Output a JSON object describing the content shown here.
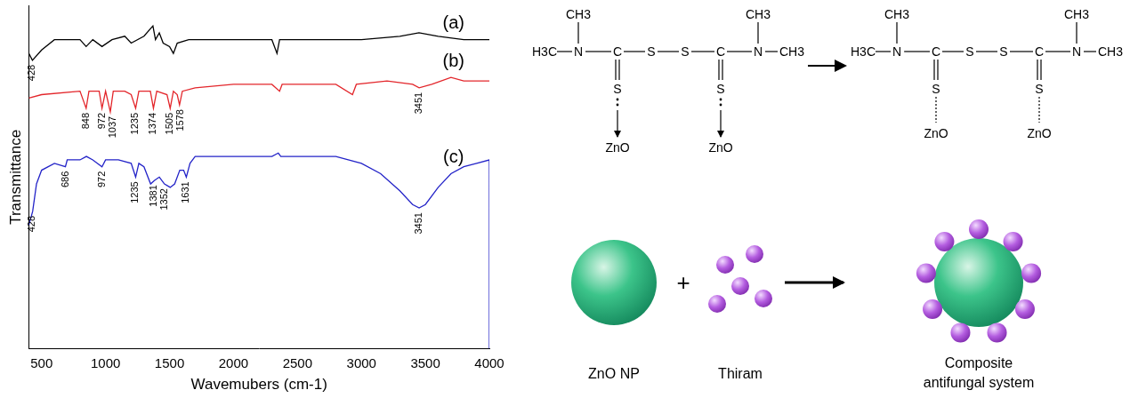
{
  "chart_data": {
    "type": "line",
    "xlabel": "Wavemubers (cm-1)",
    "ylabel": "Transmittance",
    "xlim": [
      400,
      4000
    ],
    "xticks": [
      500,
      1000,
      1500,
      2000,
      2500,
      3000,
      3500,
      4000
    ],
    "ylim": [
      0,
      100
    ],
    "tick_labels": "x",
    "grid": false,
    "series": [
      {
        "name": "(a)",
        "color": "#000000",
        "x": [
          400,
          428,
          500,
          600,
          800,
          848,
          900,
          972,
          1050,
          1150,
          1200,
          1300,
          1370,
          1390,
          1420,
          1450,
          1500,
          1530,
          1560,
          1650,
          2000,
          2300,
          2340,
          2360,
          2500,
          3000,
          3300,
          3450,
          3600,
          3800,
          4000
        ],
        "values": [
          86,
          84,
          87,
          90,
          90,
          88,
          90,
          88,
          90,
          91,
          89,
          91,
          94,
          90,
          92,
          89,
          88,
          86,
          89,
          90,
          90,
          90,
          86,
          90,
          90,
          90,
          91,
          92,
          91,
          90,
          90
        ],
        "peaks": [
          428
        ]
      },
      {
        "name": "(b)",
        "color": "#e3262b",
        "x": [
          400,
          500,
          800,
          848,
          870,
          950,
          972,
          1000,
          1037,
          1060,
          1150,
          1200,
          1235,
          1260,
          1350,
          1374,
          1400,
          1480,
          1505,
          1530,
          1560,
          1578,
          1600,
          1700,
          2000,
          2300,
          2360,
          2380,
          2800,
          2930,
          2960,
          3200,
          3400,
          3451,
          3550,
          3700,
          3800,
          4000
        ],
        "values": [
          73,
          74,
          75,
          70,
          75,
          75,
          70,
          75,
          69,
          75,
          75,
          74,
          70,
          75,
          75,
          70,
          75,
          74,
          70,
          75,
          74,
          71,
          75,
          76,
          77,
          77,
          75,
          77,
          77,
          74,
          77,
          78,
          77,
          76,
          77,
          79,
          78,
          78
        ],
        "peaks": [
          848,
          972,
          1037,
          1235,
          1374,
          1505,
          1578,
          3451
        ]
      },
      {
        "name": "(c)",
        "color": "#2323c8",
        "x": [
          400,
          430,
          460,
          500,
          600,
          686,
          700,
          800,
          850,
          900,
          972,
          1000,
          1100,
          1200,
          1235,
          1260,
          1300,
          1352,
          1381,
          1420,
          1460,
          1505,
          1540,
          1580,
          1610,
          1631,
          1660,
          1700,
          1900,
          2100,
          2300,
          2350,
          2370,
          2600,
          2800,
          3000,
          3150,
          3300,
          3400,
          3451,
          3500,
          3600,
          3700,
          3800,
          3900,
          4000,
          4000
        ],
        "values": [
          36,
          40,
          48,
          52,
          54,
          53,
          55,
          55,
          56,
          55,
          53,
          55,
          55,
          54,
          50,
          54,
          53,
          48,
          49,
          50,
          48,
          47,
          48,
          52,
          52,
          50,
          54,
          56,
          56,
          56,
          56,
          57,
          56,
          56,
          56,
          54,
          51,
          46,
          42,
          41,
          42,
          47,
          51,
          53,
          54,
          55,
          0
        ],
        "peaks": [
          428,
          686,
          972,
          1235,
          1381,
          1352,
          1631,
          3451
        ]
      }
    ]
  },
  "diagram": {
    "thiram_structure": {
      "left_methyl": "H3C",
      "n_methyl": "CH3",
      "right_methyl": "CH3",
      "nitrogen": "N",
      "carbon": "C",
      "sulfur": "S",
      "zinc_oxide": "ZnO"
    },
    "plus": "+",
    "captions": [
      "ZnO NP",
      "Thiram",
      "Composite antifungal system"
    ]
  }
}
